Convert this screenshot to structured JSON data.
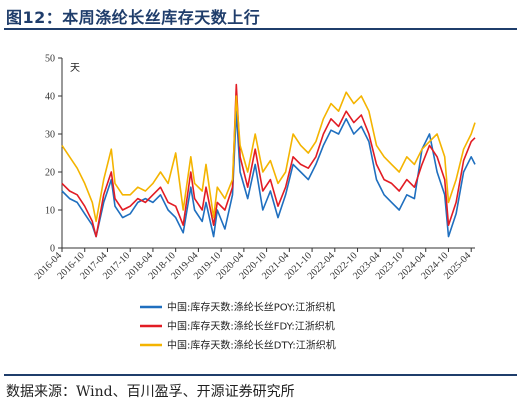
{
  "header": {
    "title": "图12：本周涤纶长丝库存天数上行"
  },
  "footer": {
    "source": "数据来源：Wind、百川盈孚、开源证券研究所"
  },
  "chart_data": {
    "type": "line",
    "unit_label": "天",
    "ylim": [
      0,
      50
    ],
    "yticks": [
      0,
      10,
      20,
      30,
      40,
      50
    ],
    "xlim": [
      "2016-04",
      "2025-05"
    ],
    "xticks": [
      "2016-04",
      "2016-10",
      "2017-04",
      "2017-10",
      "2018-04",
      "2018-10",
      "2019-04",
      "2019-10",
      "2020-04",
      "2020-10",
      "2021-04",
      "2021-10",
      "2022-04",
      "2022-10",
      "2023-04",
      "2023-10",
      "2024-04",
      "2024-10",
      "2025-04"
    ],
    "legend_position": "bottom",
    "grid": false,
    "series": [
      {
        "name": "中国:库存天数:涤纶长丝POY:江浙织机",
        "color": "#1f6fbf",
        "points": [
          [
            "2016-04",
            15
          ],
          [
            "2016-06",
            13
          ],
          [
            "2016-08",
            12
          ],
          [
            "2016-10",
            9
          ],
          [
            "2016-12",
            6
          ],
          [
            "2017-01",
            3
          ],
          [
            "2017-03",
            12
          ],
          [
            "2017-05",
            18
          ],
          [
            "2017-06",
            11
          ],
          [
            "2017-08",
            8
          ],
          [
            "2017-10",
            9
          ],
          [
            "2017-12",
            12
          ],
          [
            "2018-02",
            13
          ],
          [
            "2018-04",
            12
          ],
          [
            "2018-06",
            14
          ],
          [
            "2018-08",
            10
          ],
          [
            "2018-10",
            8
          ],
          [
            "2018-12",
            4
          ],
          [
            "2019-02",
            16
          ],
          [
            "2019-03",
            10
          ],
          [
            "2019-05",
            7
          ],
          [
            "2019-06",
            12
          ],
          [
            "2019-08",
            3
          ],
          [
            "2019-09",
            10
          ],
          [
            "2019-11",
            5
          ],
          [
            "2020-01",
            14
          ],
          [
            "2020-02",
            36
          ],
          [
            "2020-03",
            20
          ],
          [
            "2020-05",
            13
          ],
          [
            "2020-07",
            22
          ],
          [
            "2020-09",
            10
          ],
          [
            "2020-11",
            15
          ],
          [
            "2021-01",
            8
          ],
          [
            "2021-03",
            14
          ],
          [
            "2021-05",
            22
          ],
          [
            "2021-07",
            20
          ],
          [
            "2021-09",
            18
          ],
          [
            "2021-11",
            22
          ],
          [
            "2022-01",
            27
          ],
          [
            "2022-03",
            31
          ],
          [
            "2022-05",
            30
          ],
          [
            "2022-07",
            34
          ],
          [
            "2022-09",
            30
          ],
          [
            "2022-11",
            32
          ],
          [
            "2023-01",
            28
          ],
          [
            "2023-03",
            18
          ],
          [
            "2023-05",
            14
          ],
          [
            "2023-07",
            12
          ],
          [
            "2023-09",
            10
          ],
          [
            "2023-11",
            14
          ],
          [
            "2024-01",
            13
          ],
          [
            "2024-03",
            26
          ],
          [
            "2024-05",
            30
          ],
          [
            "2024-07",
            20
          ],
          [
            "2024-09",
            14
          ],
          [
            "2024-10",
            3
          ],
          [
            "2024-12",
            9
          ],
          [
            "2025-02",
            20
          ],
          [
            "2025-04",
            24
          ],
          [
            "2025-05",
            22
          ]
        ]
      },
      {
        "name": "中国:库存天数:涤纶长丝FDY:江浙织机",
        "color": "#e21c24",
        "points": [
          [
            "2016-04",
            17
          ],
          [
            "2016-06",
            15
          ],
          [
            "2016-08",
            14
          ],
          [
            "2016-10",
            11
          ],
          [
            "2016-12",
            7
          ],
          [
            "2017-01",
            3
          ],
          [
            "2017-03",
            14
          ],
          [
            "2017-05",
            20
          ],
          [
            "2017-06",
            13
          ],
          [
            "2017-08",
            10
          ],
          [
            "2017-10",
            11
          ],
          [
            "2017-12",
            13
          ],
          [
            "2018-02",
            12
          ],
          [
            "2018-04",
            14
          ],
          [
            "2018-06",
            16
          ],
          [
            "2018-08",
            12
          ],
          [
            "2018-10",
            11
          ],
          [
            "2018-12",
            6
          ],
          [
            "2019-02",
            20
          ],
          [
            "2019-03",
            13
          ],
          [
            "2019-05",
            10
          ],
          [
            "2019-06",
            16
          ],
          [
            "2019-08",
            6
          ],
          [
            "2019-09",
            12
          ],
          [
            "2019-11",
            10
          ],
          [
            "2020-01",
            16
          ],
          [
            "2020-02",
            43
          ],
          [
            "2020-03",
            24
          ],
          [
            "2020-05",
            16
          ],
          [
            "2020-07",
            26
          ],
          [
            "2020-09",
            15
          ],
          [
            "2020-11",
            18
          ],
          [
            "2021-01",
            11
          ],
          [
            "2021-03",
            16
          ],
          [
            "2021-05",
            24
          ],
          [
            "2021-07",
            22
          ],
          [
            "2021-09",
            21
          ],
          [
            "2021-11",
            24
          ],
          [
            "2022-01",
            30
          ],
          [
            "2022-03",
            34
          ],
          [
            "2022-05",
            32
          ],
          [
            "2022-07",
            36
          ],
          [
            "2022-09",
            33
          ],
          [
            "2022-11",
            35
          ],
          [
            "2023-01",
            30
          ],
          [
            "2023-03",
            22
          ],
          [
            "2023-05",
            18
          ],
          [
            "2023-07",
            17
          ],
          [
            "2023-09",
            15
          ],
          [
            "2023-11",
            18
          ],
          [
            "2024-01",
            16
          ],
          [
            "2024-03",
            22
          ],
          [
            "2024-05",
            27
          ],
          [
            "2024-07",
            24
          ],
          [
            "2024-09",
            18
          ],
          [
            "2024-10",
            6
          ],
          [
            "2024-12",
            12
          ],
          [
            "2025-02",
            23
          ],
          [
            "2025-04",
            28
          ],
          [
            "2025-05",
            29
          ]
        ]
      },
      {
        "name": "中国:库存天数:涤纶长丝DTY:江浙织机",
        "color": "#f4b400",
        "points": [
          [
            "2016-04",
            27
          ],
          [
            "2016-06",
            24
          ],
          [
            "2016-08",
            21
          ],
          [
            "2016-10",
            17
          ],
          [
            "2016-12",
            12
          ],
          [
            "2017-01",
            7
          ],
          [
            "2017-03",
            18
          ],
          [
            "2017-05",
            26
          ],
          [
            "2017-06",
            17
          ],
          [
            "2017-08",
            14
          ],
          [
            "2017-10",
            14
          ],
          [
            "2017-12",
            16
          ],
          [
            "2018-02",
            15
          ],
          [
            "2018-04",
            17
          ],
          [
            "2018-06",
            20
          ],
          [
            "2018-08",
            17
          ],
          [
            "2018-10",
            25
          ],
          [
            "2018-12",
            10
          ],
          [
            "2019-02",
            24
          ],
          [
            "2019-03",
            17
          ],
          [
            "2019-05",
            15
          ],
          [
            "2019-06",
            22
          ],
          [
            "2019-08",
            8
          ],
          [
            "2019-09",
            16
          ],
          [
            "2019-11",
            13
          ],
          [
            "2020-01",
            18
          ],
          [
            "2020-02",
            40
          ],
          [
            "2020-03",
            27
          ],
          [
            "2020-05",
            20
          ],
          [
            "2020-07",
            30
          ],
          [
            "2020-09",
            20
          ],
          [
            "2020-11",
            23
          ],
          [
            "2021-01",
            17
          ],
          [
            "2021-03",
            20
          ],
          [
            "2021-05",
            30
          ],
          [
            "2021-07",
            27
          ],
          [
            "2021-09",
            25
          ],
          [
            "2021-11",
            28
          ],
          [
            "2022-01",
            34
          ],
          [
            "2022-03",
            38
          ],
          [
            "2022-05",
            36
          ],
          [
            "2022-07",
            41
          ],
          [
            "2022-09",
            38
          ],
          [
            "2022-11",
            40
          ],
          [
            "2023-01",
            36
          ],
          [
            "2023-03",
            27
          ],
          [
            "2023-05",
            24
          ],
          [
            "2023-07",
            22
          ],
          [
            "2023-09",
            20
          ],
          [
            "2023-11",
            24
          ],
          [
            "2024-01",
            22
          ],
          [
            "2024-03",
            26
          ],
          [
            "2024-05",
            28
          ],
          [
            "2024-07",
            30
          ],
          [
            "2024-09",
            24
          ],
          [
            "2024-10",
            12
          ],
          [
            "2024-12",
            18
          ],
          [
            "2025-02",
            26
          ],
          [
            "2025-04",
            30
          ],
          [
            "2025-05",
            33
          ]
        ]
      }
    ]
  }
}
